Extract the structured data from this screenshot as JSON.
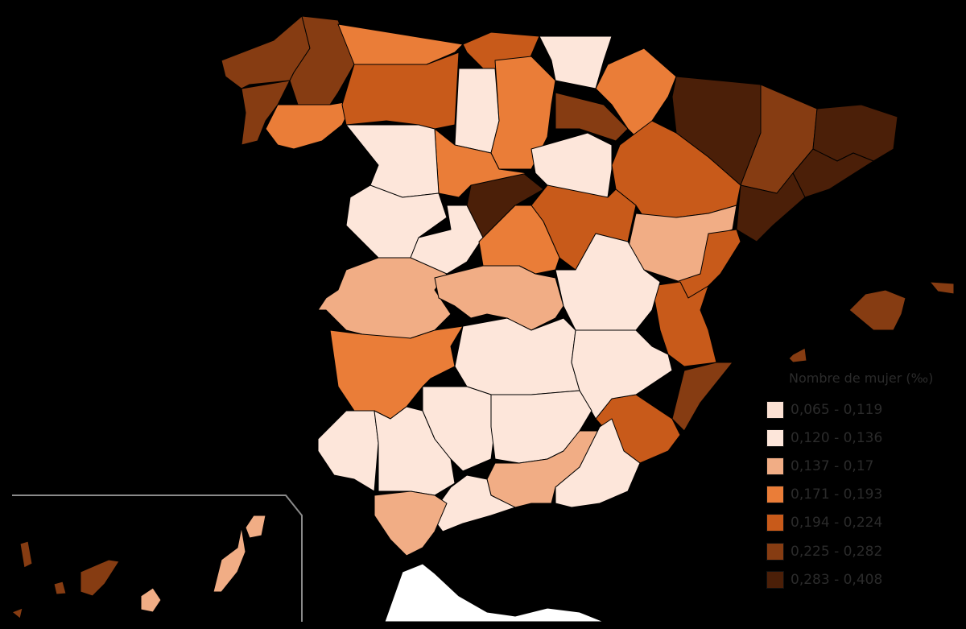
{
  "legend": {
    "title": "Nombre de mujer (‰)",
    "items": [
      {
        "label": "0,065 - 0,119",
        "color": "#fbe1d3"
      },
      {
        "label": "0,120 - 0,136",
        "color": "#fde6da"
      },
      {
        "label": "0,137 - 0,17",
        "color": "#f1ad85"
      },
      {
        "label": "0,171 - 0,193",
        "color": "#ea7d38"
      },
      {
        "label": "0,194 - 0,224",
        "color": "#c85a1a"
      },
      {
        "label": "0,225 - 0,282",
        "color": "#863c12"
      },
      {
        "label": "0,283 - 0,408",
        "color": "#4b1f08"
      }
    ]
  },
  "province_classes": {
    "a-coruna": 5,
    "lugo": 5,
    "pontevedra": 5,
    "ourense": 3,
    "asturias": 3,
    "cantabria": 4,
    "pais-vasco": 1,
    "leon": 4,
    "palencia": 1,
    "burgos": 3,
    "la-rioja": 5,
    "navarra": 3,
    "huesca": 6,
    "lleida": 5,
    "girona": 6,
    "barcelona": 6,
    "tarragona": 6,
    "zaragoza": 4,
    "teruel": 2,
    "castellon": 4,
    "valencia": 4,
    "alicante": 5,
    "murcia": 4,
    "soria": 1,
    "guadalajara": 4,
    "segovia": 6,
    "valladolid": 3,
    "zamora": 1,
    "salamanca": 1,
    "avila": 1,
    "madrid": 3,
    "caceres": 2,
    "toledo": 2,
    "cuenca": 1,
    "badajoz": 3,
    "ciudad-real": 1,
    "albacete": 1,
    "huelva": 1,
    "sevilla": 1,
    "cordoba": 1,
    "jaen": 1,
    "granada": 2,
    "almeria": 1,
    "malaga": 1,
    "cadiz": 2,
    "mallorca": 5,
    "menorca": 5,
    "ibiza": 5,
    "tenerife": 5,
    "gran-canaria": 2,
    "fuerteventura": 2,
    "lanzarote": 2,
    "la-palma": 5,
    "la-gomera": 5,
    "el-hierro": 5
  }
}
